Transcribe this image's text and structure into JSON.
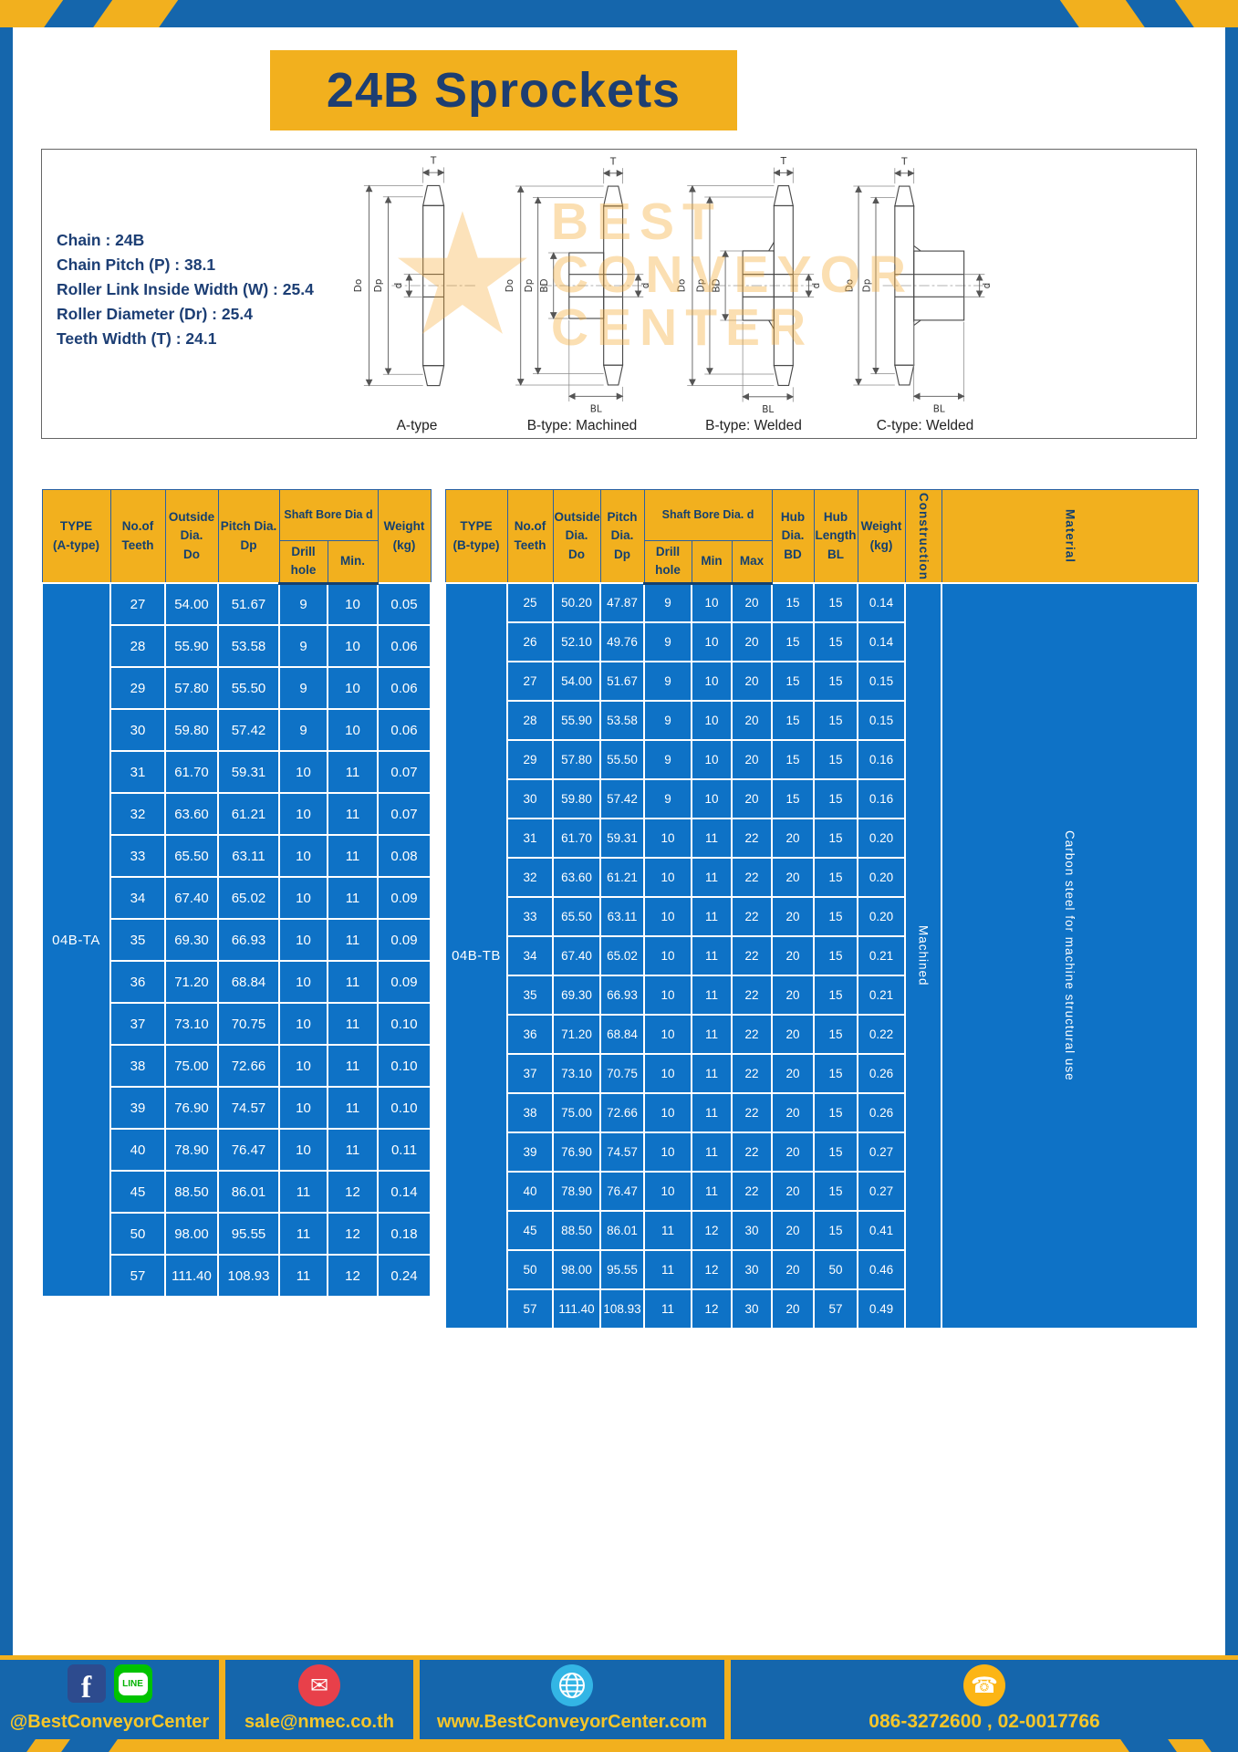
{
  "page": {
    "title": "24B Sprockets"
  },
  "colors": {
    "frame_blue": "#1566ac",
    "cell_blue": "#0e72c6",
    "accent_yellow": "#f2b01e",
    "header_text_navy": "#14406f",
    "footer_text_yellow": "#f7c629",
    "line_green": "#00c300",
    "facebook_blue": "#2d4b8e",
    "mail_red": "#e8404a",
    "globe_cyan": "#33b5e5",
    "phone_yellow": "#fcb515"
  },
  "specs": {
    "lines": [
      "Chain : 24B",
      "Chain Pitch (P) : 38.1",
      "Roller Link Inside Width (W) : 25.4",
      "Roller Diameter (Dr) : 25.4",
      "Teeth Width (T) : 24.1"
    ]
  },
  "diagrams": {
    "captions": [
      "A-type",
      "B-type: Machined",
      "B-type: Welded",
      "C-type: Welded"
    ],
    "dims": {
      "t": "T",
      "do": "Do",
      "dp": "Dp",
      "d": "d",
      "bd": "BD",
      "bl": "BL"
    },
    "watermark": {
      "star": "★",
      "line1": "BEST",
      "line2": "CONVEYOR",
      "line3": "CENTER"
    }
  },
  "table_a": {
    "type_label": "04B-TA",
    "headers": {
      "type": "TYPE\n(A-type)",
      "teeth": "No.of\nTeeth",
      "outside": "Outside\nDia.\nDo",
      "pitch": "Pitch Dia.\nDp",
      "bore": "Shaft Bore Dia d",
      "drill": "Drill hole",
      "min": "Min.",
      "weight": "Weight\n(kg)"
    },
    "rows": [
      [
        "27",
        "54.00",
        "51.67",
        "9",
        "10",
        "0.05"
      ],
      [
        "28",
        "55.90",
        "53.58",
        "9",
        "10",
        "0.06"
      ],
      [
        "29",
        "57.80",
        "55.50",
        "9",
        "10",
        "0.06"
      ],
      [
        "30",
        "59.80",
        "57.42",
        "9",
        "10",
        "0.06"
      ],
      [
        "31",
        "61.70",
        "59.31",
        "10",
        "11",
        "0.07"
      ],
      [
        "32",
        "63.60",
        "61.21",
        "10",
        "11",
        "0.07"
      ],
      [
        "33",
        "65.50",
        "63.11",
        "10",
        "11",
        "0.08"
      ],
      [
        "34",
        "67.40",
        "65.02",
        "10",
        "11",
        "0.09"
      ],
      [
        "35",
        "69.30",
        "66.93",
        "10",
        "11",
        "0.09"
      ],
      [
        "36",
        "71.20",
        "68.84",
        "10",
        "11",
        "0.09"
      ],
      [
        "37",
        "73.10",
        "70.75",
        "10",
        "11",
        "0.10"
      ],
      [
        "38",
        "75.00",
        "72.66",
        "10",
        "11",
        "0.10"
      ],
      [
        "39",
        "76.90",
        "74.57",
        "10",
        "11",
        "0.10"
      ],
      [
        "40",
        "78.90",
        "76.47",
        "10",
        "11",
        "0.11"
      ],
      [
        "45",
        "88.50",
        "86.01",
        "11",
        "12",
        "0.14"
      ],
      [
        "50",
        "98.00",
        "95.55",
        "11",
        "12",
        "0.18"
      ],
      [
        "57",
        "111.40",
        "108.93",
        "11",
        "12",
        "0.24"
      ]
    ]
  },
  "table_b": {
    "type_label": "04B-TB",
    "construction": "Machined",
    "material": "Carbon steel for machine structural use",
    "headers": {
      "type": "TYPE\n(B-type)",
      "teeth": "No.of\nTeeth",
      "outside": "Outside\nDia.\nDo",
      "pitch": "Pitch\nDia.\nDp",
      "bore": "Shaft Bore Dia.  d",
      "drill": "Drill hole",
      "min": "Min",
      "max": "Max",
      "hub_dia": "Hub\nDia.\nBD",
      "hub_len": "Hub\nLength\nBL",
      "weight": "Weight\n(kg)",
      "construction": "Construction",
      "material": "Material"
    },
    "rows": [
      [
        "25",
        "50.20",
        "47.87",
        "9",
        "10",
        "20",
        "15",
        "15",
        "0.14"
      ],
      [
        "26",
        "52.10",
        "49.76",
        "9",
        "10",
        "20",
        "15",
        "15",
        "0.14"
      ],
      [
        "27",
        "54.00",
        "51.67",
        "9",
        "10",
        "20",
        "15",
        "15",
        "0.15"
      ],
      [
        "28",
        "55.90",
        "53.58",
        "9",
        "10",
        "20",
        "15",
        "15",
        "0.15"
      ],
      [
        "29",
        "57.80",
        "55.50",
        "9",
        "10",
        "20",
        "15",
        "15",
        "0.16"
      ],
      [
        "30",
        "59.80",
        "57.42",
        "9",
        "10",
        "20",
        "15",
        "15",
        "0.16"
      ],
      [
        "31",
        "61.70",
        "59.31",
        "10",
        "11",
        "22",
        "20",
        "15",
        "0.20"
      ],
      [
        "32",
        "63.60",
        "61.21",
        "10",
        "11",
        "22",
        "20",
        "15",
        "0.20"
      ],
      [
        "33",
        "65.50",
        "63.11",
        "10",
        "11",
        "22",
        "20",
        "15",
        "0.20"
      ],
      [
        "34",
        "67.40",
        "65.02",
        "10",
        "11",
        "22",
        "20",
        "15",
        "0.21"
      ],
      [
        "35",
        "69.30",
        "66.93",
        "10",
        "11",
        "22",
        "20",
        "15",
        "0.21"
      ],
      [
        "36",
        "71.20",
        "68.84",
        "10",
        "11",
        "22",
        "20",
        "15",
        "0.22"
      ],
      [
        "37",
        "73.10",
        "70.75",
        "10",
        "11",
        "22",
        "20",
        "15",
        "0.26"
      ],
      [
        "38",
        "75.00",
        "72.66",
        "10",
        "11",
        "22",
        "20",
        "15",
        "0.26"
      ],
      [
        "39",
        "76.90",
        "74.57",
        "10",
        "11",
        "22",
        "20",
        "15",
        "0.27"
      ],
      [
        "40",
        "78.90",
        "76.47",
        "10",
        "11",
        "22",
        "20",
        "15",
        "0.27"
      ],
      [
        "45",
        "88.50",
        "86.01",
        "11",
        "12",
        "30",
        "20",
        "15",
        "0.41"
      ],
      [
        "50",
        "98.00",
        "95.55",
        "11",
        "12",
        "30",
        "20",
        "50",
        "0.46"
      ],
      [
        "57",
        "111.40",
        "108.93",
        "11",
        "12",
        "30",
        "20",
        "57",
        "0.49"
      ]
    ]
  },
  "footer": {
    "icons": {
      "facebook": "f",
      "line": "LINE",
      "email": "✉",
      "phone": "☎"
    },
    "social_handle": "@BestConveyorCenter",
    "email": "sale@nmec.co.th",
    "website": "www.BestConveyorCenter.com",
    "phone": "086-3272600 , 02-0017766"
  }
}
